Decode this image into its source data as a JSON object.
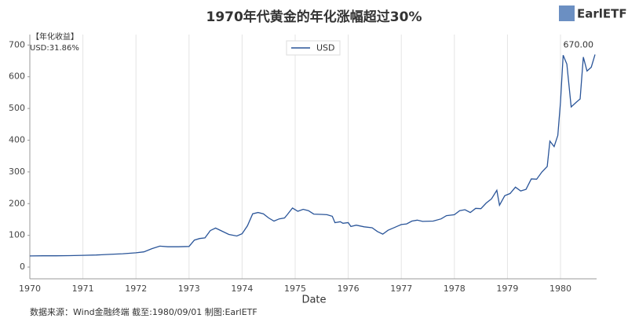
{
  "chart_data": {
    "type": "line",
    "title": "1970年代黄金的年化涨幅超过30%",
    "subtitle": "【年化收益】",
    "note": "USD:31.86%",
    "source": "数据来源：Wind金融终端 截至:1980/09/01 制图:EarlETF",
    "logo": "EarlETF",
    "xlabel": "Date",
    "x": [
      1970.0,
      1970.25,
      1970.5,
      1970.75,
      1971.0,
      1971.25,
      1971.5,
      1971.75,
      1972.0,
      1972.15,
      1972.3,
      1972.45,
      1972.6,
      1972.8,
      1973.0,
      1973.1,
      1973.2,
      1973.3,
      1973.4,
      1973.5,
      1973.6,
      1973.75,
      1973.9,
      1974.0,
      1974.1,
      1974.2,
      1974.3,
      1974.4,
      1974.5,
      1974.6,
      1974.7,
      1974.8,
      1974.85,
      1974.95,
      1975.05,
      1975.15,
      1975.25,
      1975.35,
      1975.5,
      1975.6,
      1975.7,
      1975.75,
      1975.85,
      1975.9,
      1976.0,
      1976.05,
      1976.15,
      1976.3,
      1976.45,
      1976.55,
      1976.65,
      1976.75,
      1976.9,
      1977.0,
      1977.1,
      1977.2,
      1977.3,
      1977.4,
      1977.6,
      1977.75,
      1977.85,
      1978.0,
      1978.1,
      1978.2,
      1978.3,
      1978.4,
      1978.5,
      1978.6,
      1978.7,
      1978.8,
      1978.85,
      1978.95,
      1979.05,
      1979.15,
      1979.25,
      1979.35,
      1979.45,
      1979.55,
      1979.65,
      1979.75,
      1979.8,
      1979.88,
      1979.95,
      1980.0,
      1980.05,
      1980.12,
      1980.2,
      1980.3,
      1980.37,
      1980.43,
      1980.5,
      1980.58,
      1980.65
    ],
    "series": [
      {
        "name": "USD",
        "color": "#2a5599",
        "values": [
          35,
          35.5,
          35.5,
          36,
          37,
          38,
          40,
          42,
          45,
          48,
          58,
          66,
          64,
          64,
          65,
          85,
          90,
          92,
          115,
          123,
          115,
          103,
          98,
          105,
          130,
          168,
          172,
          168,
          155,
          145,
          152,
          155,
          165,
          186,
          176,
          182,
          178,
          167,
          166,
          165,
          160,
          140,
          143,
          138,
          140,
          128,
          132,
          127,
          124,
          112,
          104,
          116,
          127,
          134,
          136,
          145,
          148,
          144,
          145,
          152,
          162,
          165,
          178,
          181,
          172,
          185,
          184,
          202,
          215,
          242,
          195,
          225,
          232,
          252,
          240,
          245,
          278,
          277,
          300,
          317,
          397,
          380,
          415,
          520,
          668,
          640,
          505,
          520,
          530,
          662,
          618,
          630,
          670
        ]
      }
    ],
    "annotations": [
      "670.00"
    ],
    "xlim": [
      1970,
      1980.68
    ],
    "xticks": [
      1970,
      1971,
      1972,
      1973,
      1974,
      1975,
      1976,
      1977,
      1978,
      1979,
      1980
    ],
    "ylim": [
      -37,
      733
    ],
    "yticks": [
      0,
      100,
      200,
      300,
      400,
      500,
      600,
      700
    ],
    "grid": "x",
    "legend": "top"
  }
}
